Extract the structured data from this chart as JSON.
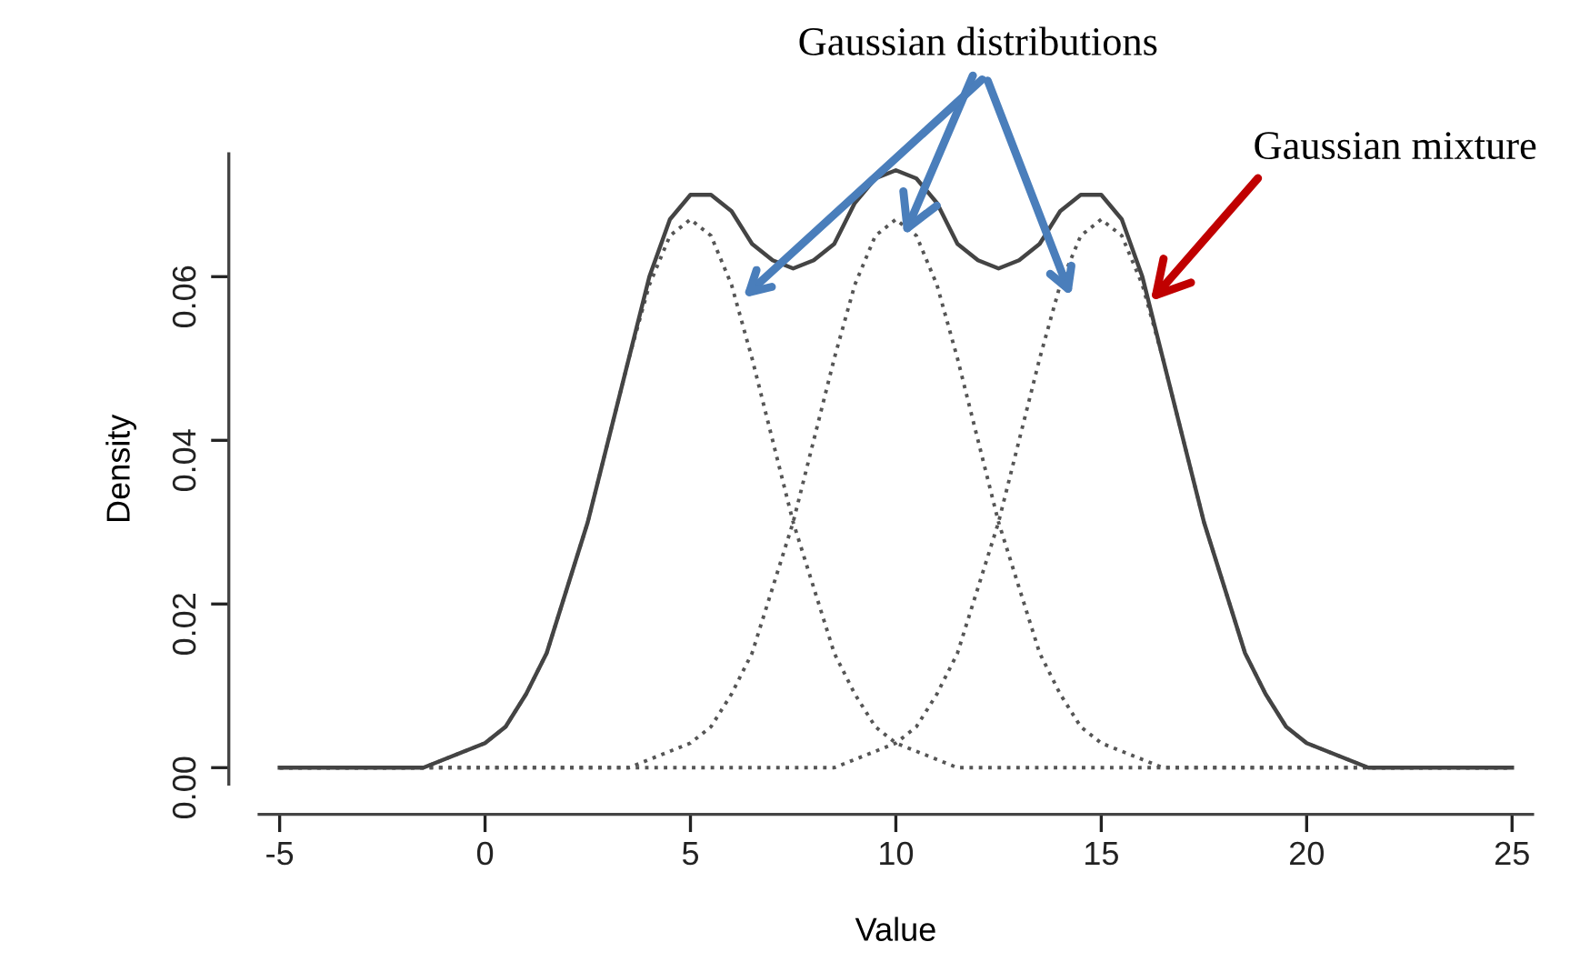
{
  "chart_data": {
    "type": "line",
    "xlabel": "Value",
    "ylabel": "Density",
    "x": [
      -5,
      -4.5,
      -4,
      -3.5,
      -3,
      -2.5,
      -2,
      -1.5,
      -1,
      -0.5,
      0,
      0.5,
      1,
      1.5,
      2,
      2.5,
      3,
      3.5,
      4,
      4.5,
      5,
      5.5,
      6,
      6.5,
      7,
      7.5,
      8,
      8.5,
      9,
      9.5,
      10,
      10.5,
      11,
      11.5,
      12,
      12.5,
      13,
      13.5,
      14,
      14.5,
      15,
      15.5,
      16,
      16.5,
      17,
      17.5,
      18,
      18.5,
      19,
      19.5,
      20,
      20.5,
      21,
      21.5,
      22,
      22.5,
      23,
      23.5,
      24,
      24.5,
      25
    ],
    "series": [
      {
        "color": "#555555",
        "line_style": "dotted",
        "values": [
          0,
          0,
          0,
          0,
          0,
          0,
          0,
          0,
          0.001,
          0.002,
          0.003,
          0.005,
          0.009,
          0.014,
          0.022,
          0.03,
          0.04,
          0.05,
          0.059,
          0.065,
          0.067,
          0.065,
          0.059,
          0.05,
          0.04,
          0.03,
          0.022,
          0.014,
          0.009,
          0.005,
          0.003,
          0.002,
          0.001,
          0,
          0,
          0,
          0,
          0,
          0,
          0,
          0,
          0,
          0,
          0,
          0,
          0,
          0,
          0,
          0,
          0,
          0,
          0,
          0,
          0,
          0,
          0,
          0,
          0,
          0,
          0,
          0
        ]
      },
      {
        "color": "#555555",
        "line_style": "dotted",
        "values": [
          0,
          0,
          0,
          0,
          0,
          0,
          0,
          0,
          0,
          0,
          0,
          0,
          0,
          0,
          0,
          0,
          0,
          0,
          0.001,
          0.002,
          0.003,
          0.005,
          0.009,
          0.014,
          0.022,
          0.03,
          0.04,
          0.05,
          0.059,
          0.065,
          0.067,
          0.065,
          0.059,
          0.05,
          0.04,
          0.03,
          0.022,
          0.014,
          0.009,
          0.005,
          0.003,
          0.002,
          0.001,
          0,
          0,
          0,
          0,
          0,
          0,
          0,
          0,
          0,
          0,
          0,
          0,
          0,
          0,
          0,
          0,
          0,
          0
        ]
      },
      {
        "color": "#555555",
        "line_style": "dotted",
        "values": [
          0,
          0,
          0,
          0,
          0,
          0,
          0,
          0,
          0,
          0,
          0,
          0,
          0,
          0,
          0,
          0,
          0,
          0,
          0,
          0,
          0,
          0,
          0,
          0,
          0,
          0,
          0,
          0,
          0.001,
          0.002,
          0.003,
          0.005,
          0.009,
          0.014,
          0.022,
          0.03,
          0.04,
          0.05,
          0.059,
          0.065,
          0.067,
          0.065,
          0.059,
          0.05,
          0.04,
          0.03,
          0.022,
          0.014,
          0.009,
          0.005,
          0.003,
          0.002,
          0.001,
          0,
          0,
          0,
          0,
          0,
          0,
          0,
          0
        ]
      },
      {
        "color": "#444444",
        "line_style": "solid",
        "values": [
          0,
          0,
          0,
          0,
          0,
          0,
          0,
          0,
          0.001,
          0.002,
          0.003,
          0.005,
          0.009,
          0.014,
          0.022,
          0.03,
          0.04,
          0.05,
          0.06,
          0.067,
          0.07,
          0.07,
          0.068,
          0.064,
          0.062,
          0.061,
          0.062,
          0.064,
          0.069,
          0.072,
          0.073,
          0.072,
          0.069,
          0.064,
          0.062,
          0.061,
          0.062,
          0.064,
          0.068,
          0.07,
          0.07,
          0.067,
          0.06,
          0.05,
          0.04,
          0.03,
          0.022,
          0.014,
          0.009,
          0.005,
          0.003,
          0.002,
          0.001,
          0,
          0,
          0,
          0,
          0,
          0,
          0,
          0
        ]
      }
    ],
    "xlim": [
      -5.5,
      25.5
    ],
    "xticks": [
      -5,
      0,
      5,
      10,
      15,
      20,
      25
    ],
    "ylim": [
      -0.002,
      0.075
    ],
    "yticks": [
      {
        "value": 0,
        "label": "0.00"
      },
      {
        "value": 0.02,
        "label": "0.02"
      },
      {
        "value": 0.04,
        "label": "0.04"
      },
      {
        "value": 0.06,
        "label": "0.06"
      }
    ],
    "annotations": [
      {
        "text": "Gaussian distributions",
        "x": 10.2,
        "y": 0.065
      },
      {
        "text": "Gaussian mixture",
        "x": 16.2,
        "y": 0.057
      }
    ]
  }
}
